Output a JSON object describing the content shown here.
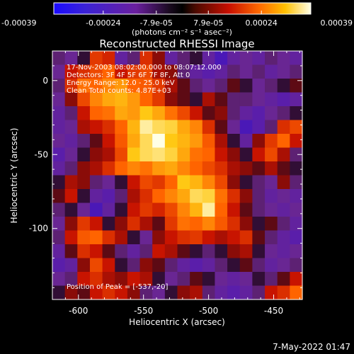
{
  "colorbar": {
    "ticks": [
      "-0.00039",
      "-0.00024",
      "-7.9e-05",
      "7.9e-05",
      "0.00024",
      "0.00039"
    ],
    "units": "(photons cm⁻² s⁻¹ asec⁻²)"
  },
  "info": {
    "line1": "17-Nov-2003 08:02:00.000 to 08:07:12.000",
    "line2": "Detectors: 3F 4F 5F 6F 7F 8F, Att 0",
    "line3": "Energy Range: 12.0 - 25.0 keV",
    "line4": "Clean     Total counts: 4.87E+03",
    "peak": "Position of Peak = [-537,-20]"
  },
  "footer": {
    "date": "7-May-2022 01:47"
  },
  "chart_data": {
    "type": "heatmap",
    "title": "Reconstructed RHESSI Image",
    "xlabel": "Heliocentric X (arcsec)",
    "ylabel": "Heliocentric Y (arcsec)",
    "xlim": [
      -620,
      -428
    ],
    "ylim": [
      -148,
      20
    ],
    "xticks": [
      -600,
      -550,
      -500,
      -450
    ],
    "xtick_labels": [
      "-600",
      "-550",
      "-500",
      "-450"
    ],
    "yticks": [
      0,
      -50,
      -100
    ],
    "ytick_labels": [
      "0",
      "-50",
      "-100"
    ],
    "colorbar_range": [
      -0.00039,
      0.00039
    ],
    "colormap": "rhessi-fire",
    "peak": [
      -537,
      -20
    ],
    "grid_note": "Approximate intensity map (normalized 0-1) sampled from image",
    "z": [
      [
        0.3,
        0.25,
        0.35,
        0.62,
        0.58,
        0.2,
        0.3,
        0.6,
        0.45,
        0.2,
        0.3,
        0.35,
        0.2,
        0.1,
        0.2,
        0.25,
        0.2,
        0.3,
        0.25,
        0.2
      ],
      [
        0.25,
        0.55,
        0.6,
        0.65,
        0.7,
        0.55,
        0.62,
        0.65,
        0.5,
        0.45,
        0.3,
        0.2,
        0.15,
        0.2,
        0.3,
        0.25,
        0.3,
        0.2,
        0.25,
        0.3
      ],
      [
        0.3,
        0.6,
        0.72,
        0.7,
        0.75,
        0.78,
        0.7,
        0.68,
        0.62,
        0.5,
        0.4,
        0.3,
        0.25,
        0.3,
        0.4,
        0.35,
        0.25,
        0.3,
        0.35,
        0.4
      ],
      [
        0.25,
        0.45,
        0.65,
        0.75,
        0.8,
        0.82,
        0.78,
        0.7,
        0.62,
        0.45,
        0.4,
        0.35,
        0.5,
        0.4,
        0.3,
        0.3,
        0.25,
        0.2,
        0.15,
        0.2
      ],
      [
        0.2,
        0.3,
        0.55,
        0.7,
        0.72,
        0.8,
        0.78,
        0.85,
        0.8,
        0.72,
        0.65,
        0.55,
        0.4,
        0.45,
        0.3,
        0.2,
        0.15,
        0.25,
        0.3,
        0.35
      ],
      [
        0.2,
        0.25,
        0.5,
        0.55,
        0.6,
        0.7,
        0.82,
        0.95,
        0.9,
        0.88,
        0.8,
        0.75,
        0.6,
        0.4,
        0.25,
        0.1,
        0.15,
        0.3,
        0.6,
        0.65
      ],
      [
        0.25,
        0.2,
        0.3,
        0.4,
        0.55,
        0.68,
        0.8,
        0.9,
        1.0,
        0.85,
        0.82,
        0.78,
        0.68,
        0.5,
        0.35,
        0.2,
        0.45,
        0.62,
        0.7,
        0.55
      ],
      [
        0.15,
        0.25,
        0.35,
        0.45,
        0.5,
        0.65,
        0.85,
        0.9,
        0.92,
        0.88,
        0.8,
        0.72,
        0.7,
        0.55,
        0.45,
        0.35,
        0.55,
        0.65,
        0.5,
        0.3
      ],
      [
        0.2,
        0.3,
        0.45,
        0.5,
        0.6,
        0.7,
        0.75,
        0.72,
        0.78,
        0.8,
        0.75,
        0.7,
        0.65,
        0.6,
        0.5,
        0.45,
        0.4,
        0.5,
        0.4,
        0.35
      ],
      [
        0.35,
        0.5,
        0.45,
        0.3,
        0.25,
        0.35,
        0.55,
        0.65,
        0.62,
        0.7,
        0.85,
        0.82,
        0.75,
        0.65,
        0.45,
        0.35,
        0.3,
        0.25,
        0.45,
        0.3
      ],
      [
        0.4,
        0.55,
        0.35,
        0.2,
        0.15,
        0.3,
        0.5,
        0.6,
        0.7,
        0.75,
        0.8,
        0.9,
        0.88,
        0.72,
        0.6,
        0.45,
        0.3,
        0.2,
        0.25,
        0.2
      ],
      [
        0.3,
        0.35,
        0.25,
        0.1,
        0.2,
        0.35,
        0.55,
        0.62,
        0.58,
        0.65,
        0.75,
        0.82,
        0.95,
        0.7,
        0.55,
        0.4,
        0.3,
        0.25,
        0.2,
        0.25
      ],
      [
        0.25,
        0.45,
        0.62,
        0.55,
        0.35,
        0.45,
        0.6,
        0.5,
        0.4,
        0.62,
        0.72,
        0.7,
        0.75,
        0.68,
        0.6,
        0.45,
        0.35,
        0.4,
        0.3,
        0.2
      ],
      [
        0.3,
        0.55,
        0.68,
        0.7,
        0.6,
        0.5,
        0.35,
        0.25,
        0.45,
        0.55,
        0.6,
        0.62,
        0.55,
        0.5,
        0.55,
        0.6,
        0.4,
        0.3,
        0.2,
        0.15
      ],
      [
        0.2,
        0.4,
        0.6,
        0.55,
        0.4,
        0.3,
        0.2,
        0.3,
        0.55,
        0.5,
        0.4,
        0.35,
        0.3,
        0.35,
        0.45,
        0.5,
        0.35,
        0.25,
        0.2,
        0.25
      ],
      [
        0.15,
        0.2,
        0.45,
        0.65,
        0.55,
        0.35,
        0.3,
        0.45,
        0.4,
        0.3,
        0.2,
        0.15,
        0.2,
        0.3,
        0.35,
        0.4,
        0.3,
        0.2,
        0.25,
        0.3
      ],
      [
        0.25,
        0.3,
        0.55,
        0.6,
        0.5,
        0.45,
        0.55,
        0.5,
        0.35,
        0.25,
        0.3,
        0.4,
        0.35,
        0.25,
        0.2,
        0.25,
        0.35,
        0.3,
        0.4,
        0.55
      ],
      [
        0.35,
        0.45,
        0.4,
        0.55,
        0.6,
        0.55,
        0.45,
        0.3,
        0.25,
        0.35,
        0.45,
        0.5,
        0.3,
        0.2,
        0.15,
        0.2,
        0.3,
        0.55,
        0.6,
        0.7
      ]
    ]
  }
}
